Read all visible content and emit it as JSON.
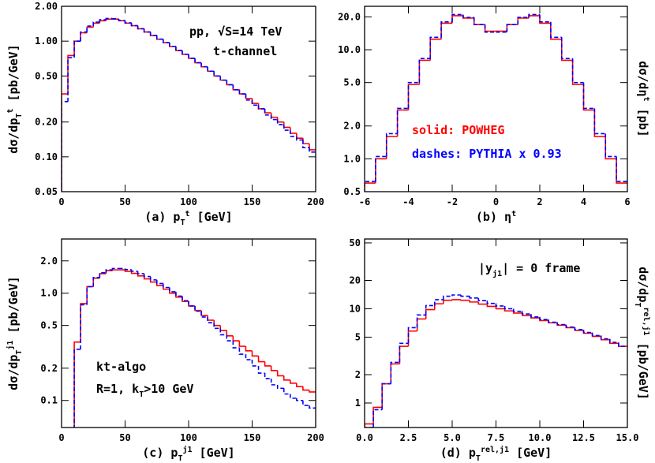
{
  "chart_data": [
    {
      "type": "histogram",
      "log_y": true,
      "xlabel": [
        "(a) p",
        "T",
        "t",
        " [GeV]"
      ],
      "ylabel": [
        "dσ/dp",
        "T",
        "t",
        " [pb/GeV]"
      ],
      "annotations": [
        [
          "pp, √S=14 TeV"
        ],
        [
          "t-channel"
        ]
      ],
      "xlim": [
        0,
        200
      ],
      "xticks": [
        0,
        50,
        100,
        150,
        200
      ],
      "ylim": [
        0.05,
        2.0
      ],
      "yticks": [
        {
          "value": 0.05,
          "label": "0.05"
        },
        {
          "value": 0.1,
          "label": "0.10"
        },
        {
          "value": 0.2,
          "label": "0.20"
        },
        {
          "value": 0.5,
          "label": "0.50"
        },
        {
          "value": 1,
          "label": "1.00"
        },
        {
          "value": 2,
          "label": "2.00"
        }
      ],
      "bins": [
        0,
        5,
        10,
        15,
        20,
        25,
        30,
        35,
        40,
        45,
        50,
        55,
        60,
        65,
        70,
        75,
        80,
        85,
        90,
        95,
        100,
        105,
        110,
        115,
        120,
        125,
        130,
        135,
        140,
        145,
        150,
        155,
        160,
        165,
        170,
        175,
        180,
        185,
        190,
        195,
        200
      ],
      "series": [
        {
          "color": "#ff0000",
          "linestyle": "solid",
          "values": [
            0.35,
            0.75,
            1.0,
            1.18,
            1.32,
            1.43,
            1.5,
            1.55,
            1.55,
            1.5,
            1.43,
            1.36,
            1.28,
            1.2,
            1.12,
            1.04,
            0.97,
            0.9,
            0.83,
            0.77,
            0.71,
            0.65,
            0.6,
            0.55,
            0.5,
            0.46,
            0.42,
            0.38,
            0.35,
            0.32,
            0.29,
            0.26,
            0.24,
            0.22,
            0.2,
            0.18,
            0.16,
            0.145,
            0.13,
            0.115
          ]
        },
        {
          "color": "#0000ff",
          "linestyle": "dashed",
          "values": [
            0.3,
            0.72,
            1.0,
            1.2,
            1.35,
            1.46,
            1.53,
            1.57,
            1.56,
            1.51,
            1.44,
            1.36,
            1.28,
            1.2,
            1.12,
            1.04,
            0.97,
            0.9,
            0.83,
            0.77,
            0.71,
            0.65,
            0.6,
            0.55,
            0.5,
            0.46,
            0.42,
            0.38,
            0.35,
            0.31,
            0.28,
            0.26,
            0.23,
            0.21,
            0.19,
            0.17,
            0.15,
            0.14,
            0.12,
            0.11
          ]
        }
      ]
    },
    {
      "type": "histogram",
      "log_y": true,
      "xlabel": [
        "(b) η",
        "t"
      ],
      "ylabel": [
        "dσ/dη",
        "t",
        " [pb]"
      ],
      "annotations": [],
      "xlim": [
        -6,
        6
      ],
      "xticks": [
        -6,
        -4,
        -2,
        0,
        2,
        4,
        6
      ],
      "ylim": [
        0.5,
        25
      ],
      "yticks": [
        0.5,
        {
          "value": 1,
          "label": "1.0"
        },
        {
          "value": 2,
          "label": "2.0"
        },
        {
          "value": 5,
          "label": "5.0"
        },
        {
          "value": 10,
          "label": "10.0"
        },
        {
          "value": 20,
          "label": "20.0"
        }
      ],
      "bins": [
        -6,
        -5.5,
        -5,
        -4.5,
        -4,
        -3.5,
        -3,
        -2.5,
        -2,
        -1.5,
        -1,
        -0.5,
        0,
        0.5,
        1,
        1.5,
        2,
        2.5,
        3,
        3.5,
        4,
        4.5,
        5,
        5.5,
        6
      ],
      "series": [
        {
          "name": "solid: POWHEG",
          "color": "#ff0000",
          "linestyle": "solid",
          "values": [
            0.6,
            1.0,
            1.6,
            2.8,
            4.8,
            8,
            12.5,
            17.5,
            20.5,
            19.5,
            17,
            14.8,
            14.8,
            17,
            19.5,
            20.5,
            17.5,
            12.5,
            8,
            4.8,
            2.8,
            1.6,
            1.0,
            0.6
          ]
        },
        {
          "name": "dashes: PYTHIA x 0.93",
          "color": "#0000ff",
          "linestyle": "dashed",
          "values": [
            0.62,
            1.05,
            1.7,
            2.9,
            5.0,
            8.3,
            13,
            18,
            21,
            19.8,
            17,
            14.5,
            14.5,
            17,
            19.8,
            21,
            18,
            13,
            8.3,
            5.0,
            2.9,
            1.7,
            1.05,
            0.62
          ]
        }
      ]
    },
    {
      "type": "histogram",
      "log_y": true,
      "xlabel": [
        "(c) p",
        "T",
        "j1",
        " [GeV]"
      ],
      "ylabel": [
        "dσ/dp",
        "T",
        "j1",
        " [pb/GeV]"
      ],
      "annotations": [
        [
          "kt-algo"
        ],
        [
          "R=1, k",
          "T",
          ">10 GeV"
        ]
      ],
      "xlim": [
        0,
        200
      ],
      "xticks": [
        0,
        50,
        100,
        150,
        200
      ],
      "ylim": [
        0.056,
        3.2
      ],
      "yticks": [
        0.1,
        0.2,
        0.5,
        {
          "value": 1,
          "label": "1.0"
        },
        {
          "value": 2,
          "label": "2.0"
        }
      ],
      "bins": [
        10,
        15,
        20,
        25,
        30,
        35,
        40,
        45,
        50,
        55,
        60,
        65,
        70,
        75,
        80,
        85,
        90,
        95,
        100,
        105,
        110,
        115,
        120,
        125,
        130,
        135,
        140,
        145,
        150,
        155,
        160,
        165,
        170,
        175,
        180,
        185,
        190,
        195,
        200
      ],
      "series": [
        {
          "color": "#ff0000",
          "linestyle": "solid",
          "values": [
            0.35,
            0.8,
            1.15,
            1.38,
            1.52,
            1.62,
            1.65,
            1.65,
            1.6,
            1.53,
            1.45,
            1.36,
            1.27,
            1.18,
            1.09,
            1.0,
            0.92,
            0.84,
            0.76,
            0.69,
            0.62,
            0.56,
            0.5,
            0.45,
            0.4,
            0.36,
            0.32,
            0.29,
            0.26,
            0.23,
            0.21,
            0.19,
            0.17,
            0.155,
            0.145,
            0.135,
            0.125,
            0.12
          ]
        },
        {
          "color": "#0000ff",
          "linestyle": "dashed",
          "values": [
            0.3,
            0.78,
            1.15,
            1.4,
            1.55,
            1.65,
            1.7,
            1.7,
            1.66,
            1.6,
            1.52,
            1.43,
            1.33,
            1.23,
            1.13,
            1.03,
            0.94,
            0.85,
            0.76,
            0.68,
            0.6,
            0.53,
            0.47,
            0.41,
            0.36,
            0.31,
            0.27,
            0.24,
            0.21,
            0.18,
            0.16,
            0.14,
            0.13,
            0.115,
            0.105,
            0.1,
            0.09,
            0.085
          ]
        }
      ]
    },
    {
      "type": "histogram",
      "log_y": true,
      "xlabel": [
        "(d) p",
        "T",
        "rel,j1",
        " [GeV]"
      ],
      "ylabel": [
        "dσ/dp",
        "T",
        "rel,j1",
        " [pb/GeV]"
      ],
      "annotations": [
        [
          "|y",
          "j1",
          "| = 0 frame"
        ]
      ],
      "xlim": [
        0,
        15
      ],
      "xticks": [
        {
          "value": 0,
          "label": "0.0"
        },
        2.5,
        {
          "value": 5,
          "label": "5.0"
        },
        7.5,
        {
          "value": 10,
          "label": "10.0"
        },
        12.5,
        {
          "value": 15,
          "label": "15.0"
        }
      ],
      "ylim": [
        0.55,
        55
      ],
      "yticks": [
        1,
        2,
        5,
        10,
        20,
        50
      ],
      "bins": [
        0,
        0.5,
        1,
        1.5,
        2,
        2.5,
        3,
        3.5,
        4,
        4.5,
        5,
        5.5,
        6,
        6.5,
        7,
        7.5,
        8,
        8.5,
        9,
        9.5,
        10,
        10.5,
        11,
        11.5,
        12,
        12.5,
        13,
        13.5,
        14,
        14.5,
        15
      ],
      "series": [
        {
          "color": "#ff0000",
          "linestyle": "solid",
          "values": [
            0.6,
            0.9,
            1.6,
            2.6,
            4.0,
            5.8,
            7.8,
            9.8,
            11.3,
            12.3,
            12.5,
            12.3,
            11.8,
            11.2,
            10.6,
            10.0,
            9.5,
            9.0,
            8.5,
            8.0,
            7.5,
            7.1,
            6.7,
            6.3,
            5.9,
            5.5,
            5.1,
            4.7,
            4.3,
            4.0
          ]
        },
        {
          "color": "#0000ff",
          "linestyle": "dashed",
          "values": [
            0.55,
            0.85,
            1.6,
            2.7,
            4.3,
            6.3,
            8.6,
            10.8,
            12.5,
            13.6,
            14.0,
            13.6,
            13.0,
            12.2,
            11.4,
            10.7,
            10.0,
            9.4,
            8.8,
            8.2,
            7.7,
            7.2,
            6.8,
            6.4,
            6.0,
            5.6,
            5.2,
            4.8,
            4.4,
            4.0
          ]
        }
      ]
    }
  ]
}
